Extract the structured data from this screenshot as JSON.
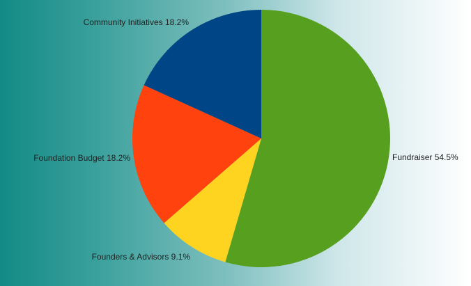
{
  "chart_data": {
    "type": "pie",
    "colors": {
      "Fundraiser": "#579f1f",
      "Founders & Advisors": "#ffd420",
      "Foundation Budget": "#ff420e",
      "Community Initiatives": "#004586"
    },
    "slices": [
      {
        "label": "Fundraiser",
        "value": 54.5,
        "display": "Fundraiser 54.5%"
      },
      {
        "label": "Founders & Advisors",
        "value": 9.1,
        "display": "Founders & Advisors 9.1%"
      },
      {
        "label": "Foundation Budget",
        "value": 18.2,
        "display": "Foundation Budget 18.2%"
      },
      {
        "label": "Community Initiatives",
        "value": 18.2,
        "display": "Community Initiatives 18.2%"
      }
    ]
  }
}
